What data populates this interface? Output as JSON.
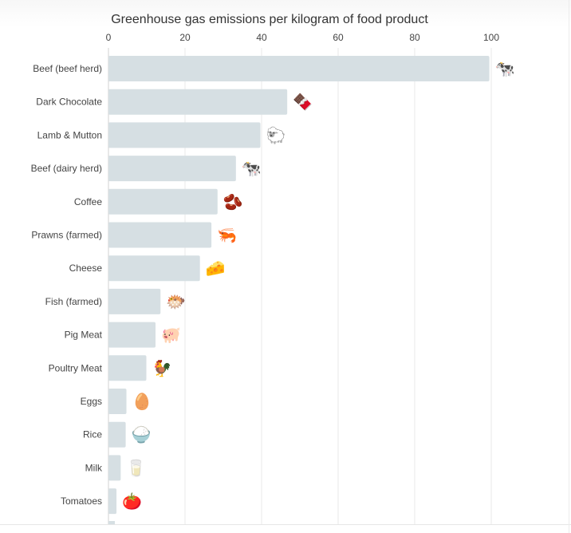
{
  "chart_data": {
    "type": "bar",
    "orientation": "horizontal",
    "title": "Greenhouse gas emissions per kilogram of food product",
    "xlabel": "",
    "ylabel": "",
    "xlim": [
      0,
      110
    ],
    "ticks": [
      0,
      20,
      40,
      60,
      80,
      100
    ],
    "grid": true,
    "bar_color": "#d6dfe3",
    "categories": [
      "Beef (beef herd)",
      "Dark Chocolate",
      "Lamb & Mutton",
      "Beef (dairy herd)",
      "Coffee",
      "Prawns (farmed)",
      "Cheese",
      "Fish (farmed)",
      "Pig Meat",
      "Poultry Meat",
      "Eggs",
      "Rice",
      "Milk",
      "Tomatoes"
    ],
    "values": [
      99.5,
      46.7,
      39.7,
      33.3,
      28.5,
      26.9,
      23.9,
      13.6,
      12.3,
      9.9,
      4.7,
      4.5,
      3.2,
      2.1
    ],
    "icons": [
      "cow-icon",
      "chocolate-icon",
      "sheep-icon",
      "cow-icon",
      "coffee-beans-icon",
      "shrimp-icon",
      "cheese-icon",
      "fish-icon",
      "pig-icon",
      "rooster-icon",
      "egg-icon",
      "rice-icon",
      "milk-icon",
      "tomato-icon"
    ],
    "icon_glyphs": [
      "🐄",
      "🍫",
      "🐑",
      "🐄",
      "🫘",
      "🦐",
      "🧀",
      "🐡",
      "🐖",
      "🐓",
      "🥚",
      "🍚",
      "🥛",
      "🍅"
    ]
  }
}
